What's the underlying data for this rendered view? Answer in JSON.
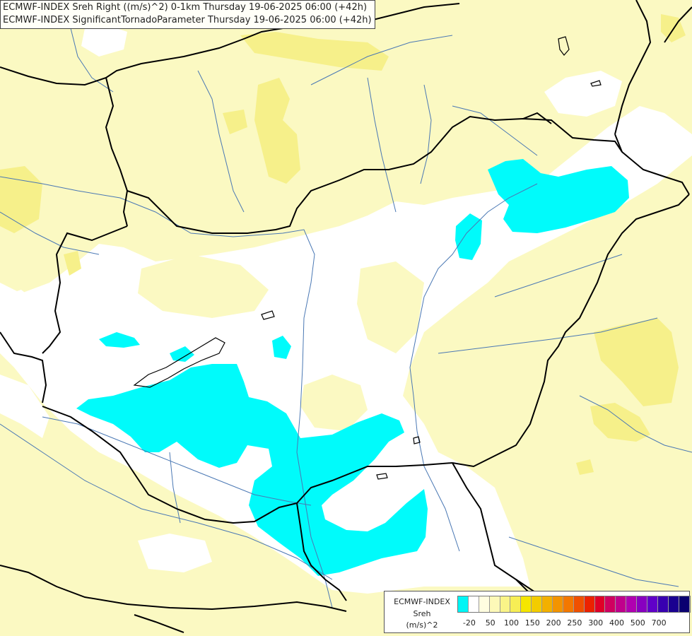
{
  "header": {
    "line1": "ECMWF-INDEX Sreh Right ((m/s)^2) 0-1km Thursday 19-06-2025 06:00 (+42h)",
    "line2": "ECMWF-INDEX SignificantTornadoParameter Thursday 19-06-2025 06:00 (+42h)"
  },
  "colors": {
    "background_low": "#ffffff",
    "yellow_light": "#fbf9c2",
    "yellow_mid": "#f6f08a",
    "negative_cyan": "#00fbfb",
    "borders": "#000000",
    "rivers": "#4a78b4"
  },
  "legend": {
    "title_line1": "ECMWF-INDEX",
    "title_line2": "Sreh",
    "title_line3": "(m/s)^2",
    "colors": [
      "#00f5f5",
      "#ffffff",
      "#fffde0",
      "#fdf9b8",
      "#faf488",
      "#f7ee55",
      "#f5e600",
      "#f3cc00",
      "#f3b000",
      "#f39400",
      "#f37800",
      "#f05000",
      "#ec2200",
      "#e00028",
      "#d00060",
      "#c0008c",
      "#b000b0",
      "#8800c0",
      "#6000c8",
      "#3800b0",
      "#1a0090",
      "#0a0070"
    ],
    "ticks": [
      {
        "label": "-20",
        "idx": 1
      },
      {
        "label": "50",
        "idx": 3
      },
      {
        "label": "100",
        "idx": 5
      },
      {
        "label": "150",
        "idx": 7
      },
      {
        "label": "200",
        "idx": 9
      },
      {
        "label": "250",
        "idx": 11
      },
      {
        "label": "300",
        "idx": 13
      },
      {
        "label": "400",
        "idx": 15
      },
      {
        "label": "500",
        "idx": 17
      },
      {
        "label": "700",
        "idx": 19
      }
    ]
  }
}
